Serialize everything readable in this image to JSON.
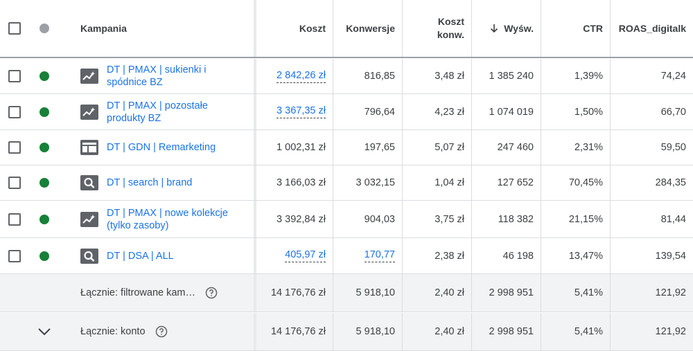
{
  "header": {
    "campaign": "Kampania",
    "cost": "Koszt",
    "conversions": "Konwersje",
    "cost_per_conv_line1": "Koszt",
    "cost_per_conv_line2": "konw.",
    "impressions": "Wyśw.",
    "ctr": "CTR",
    "roas": "ROAS_digitalk",
    "sort_icon": "arrow-down-icon"
  },
  "rows": [
    {
      "icon": "performance-max-icon",
      "name_line1": "DT | PMAX | sukienki i",
      "name_line2": "spódnice BZ",
      "cost": "2 842,26 zł",
      "conversions": "816,85",
      "cost_per_conv": "3,48 zł",
      "impressions": "1 385 240",
      "ctr": "1,39%",
      "roas": "74,24"
    },
    {
      "icon": "performance-max-icon",
      "name_line1": "DT | PMAX | pozostałe",
      "name_line2": "produkty BZ",
      "cost": "3 367,35 zł",
      "conversions": "796,64",
      "cost_per_conv": "4,23 zł",
      "impressions": "1 074 019",
      "ctr": "1,50%",
      "roas": "66,70"
    },
    {
      "icon": "display-icon",
      "name_line1": "DT | GDN | Remarketing",
      "name_line2": "",
      "cost": "1 002,31 zł",
      "conversions": "197,65",
      "cost_per_conv": "5,07 zł",
      "impressions": "247 460",
      "ctr": "2,31%",
      "roas": "59,50"
    },
    {
      "icon": "search-icon",
      "name_line1": "DT | search | brand",
      "name_line2": "",
      "cost": "3 166,03 zł",
      "conversions": "3 032,15",
      "cost_per_conv": "1,04 zł",
      "impressions": "127 652",
      "ctr": "70,45%",
      "roas": "284,35"
    },
    {
      "icon": "performance-max-icon",
      "name_line1": "DT | PMAX | nowe kolekcje",
      "name_line2": "(tylko zasoby)",
      "cost": "3 392,84 zł",
      "conversions": "904,03",
      "cost_per_conv": "3,75 zł",
      "impressions": "118 382",
      "ctr": "21,15%",
      "roas": "81,44"
    },
    {
      "icon": "search-icon",
      "name_line1": "DT | DSA | ALL",
      "name_line2": "",
      "cost": "405,97 zł",
      "conversions": "170,77",
      "cost_per_conv": "2,38 zł",
      "impressions": "46 198",
      "ctr": "13,47%",
      "roas": "139,54"
    }
  ],
  "totals": [
    {
      "label": "Łącznie: filtrowane kam…",
      "cost": "14 176,76 zł",
      "conversions": "5 918,10",
      "cost_per_conv": "2,40 zł",
      "impressions": "2 998 951",
      "ctr": "5,41%",
      "roas": "121,92"
    },
    {
      "label": "Łącznie: konto",
      "cost": "14 176,76 zł",
      "conversions": "5 918,10",
      "cost_per_conv": "2,40 zł",
      "impressions": "2 998 951",
      "ctr": "5,41%",
      "roas": "121,92"
    }
  ],
  "colors": {
    "link": "#1a73e8",
    "status_enabled": "#188038",
    "status_header": "#9aa0a6",
    "total_bg": "#f1f3f4"
  }
}
